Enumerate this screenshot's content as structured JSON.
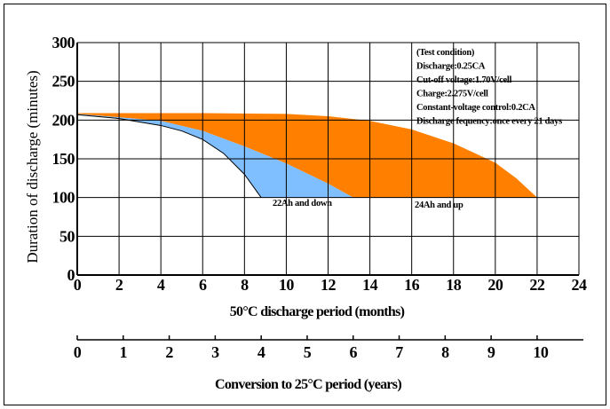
{
  "chart_data": {
    "type": "area",
    "ylabel": "Duration of discharge (minutes)",
    "xlabel": "50°C discharge period (months)",
    "xlabel2": "Conversion to 25°C period (years)",
    "xlim": [
      0,
      24
    ],
    "ylim": [
      0,
      300
    ],
    "xticks": [
      0,
      2,
      4,
      6,
      8,
      10,
      12,
      14,
      16,
      18,
      20,
      22,
      24
    ],
    "yticks": [
      0,
      50,
      100,
      150,
      200,
      250,
      300
    ],
    "x2lim": [
      0,
      10
    ],
    "x2ticks": [
      0,
      1,
      2,
      3,
      4,
      5,
      6,
      7,
      8,
      9,
      10
    ],
    "grid": true,
    "test_condition": [
      "(Test condition)",
      "Discharge:0.25CA",
      "Cut-off voltage:1.70V/cell",
      "Charge:2.275V/cell",
      "Constant-voltage control:0.2CA",
      "Discharge fequency:once every 21 days"
    ],
    "series": [
      {
        "name": "24Ah and up",
        "color": "#ff8000",
        "upper": {
          "x": [
            0,
            6,
            10,
            12,
            14,
            16,
            18,
            20,
            21,
            22
          ],
          "y": [
            209,
            209,
            208,
            205,
            199,
            188,
            170,
            145,
            125,
            100
          ]
        },
        "lower": {
          "x": [
            0,
            4,
            6,
            8,
            10,
            12,
            13.2
          ],
          "y": [
            208,
            199,
            186,
            166,
            144,
            118,
            100
          ]
        }
      },
      {
        "name": "22Ah and down",
        "color": "#80bfff",
        "upper": {
          "x": [
            0,
            4,
            6,
            8,
            10,
            12,
            13.2
          ],
          "y": [
            208,
            199,
            186,
            166,
            144,
            118,
            100
          ]
        },
        "lower": {
          "x": [
            0,
            2,
            4,
            5,
            6,
            7,
            8,
            8.8
          ],
          "y": [
            207,
            202,
            193,
            186,
            175,
            157,
            130,
            100
          ]
        }
      }
    ]
  }
}
